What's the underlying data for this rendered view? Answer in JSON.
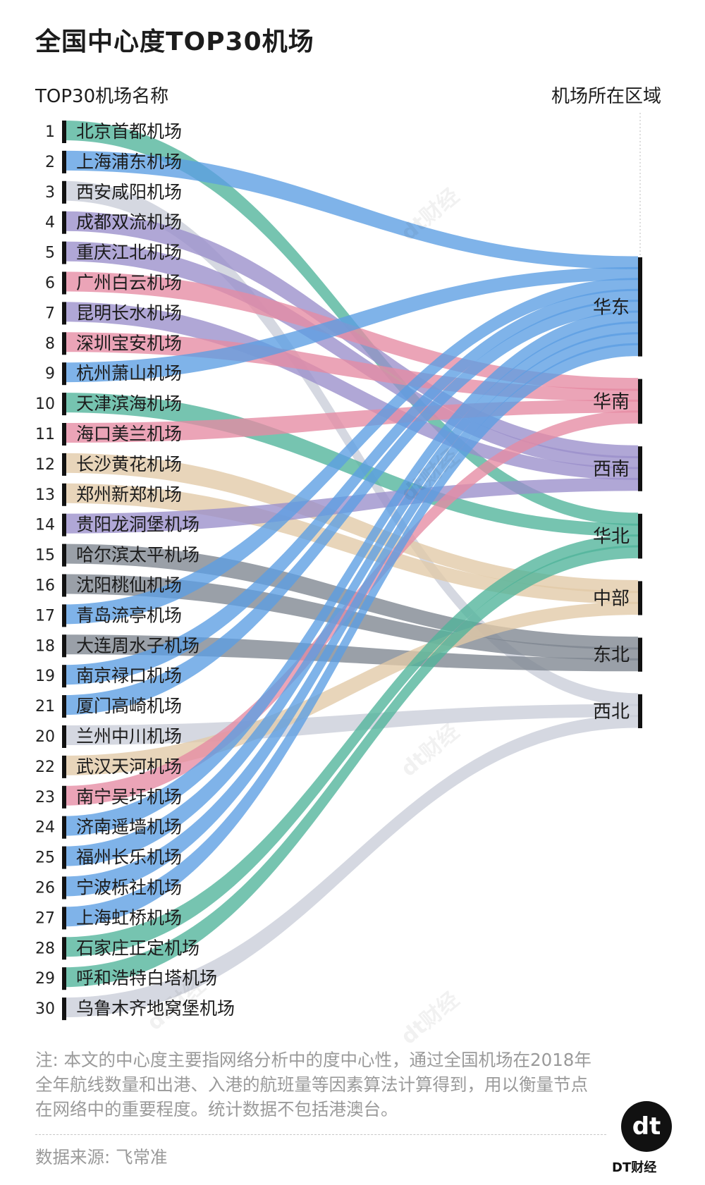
{
  "title": "全国中心度TOP30机场",
  "left_header": "TOP30机场名称",
  "right_header": "机场所在区域",
  "colors": {
    "华东": "#5b9ee3",
    "华南": "#e58aa3",
    "西南": "#9a8ecb",
    "华北": "#4fb39a",
    "中部": "#e1c9a7",
    "东北": "#7d8590",
    "西北": "#c9cdd8"
  },
  "chart_data": {
    "type": "sankey",
    "title": "全国中心度TOP30机场",
    "xlabel": "TOP30机场名称",
    "ylabel": "机场所在区域",
    "nodes_right": [
      "华东",
      "华南",
      "西南",
      "华北",
      "中部",
      "东北",
      "西北"
    ],
    "links": [
      {
        "rank": "1",
        "name": "北京首都机场",
        "region": "华北"
      },
      {
        "rank": "2",
        "name": "上海浦东机场",
        "region": "华东"
      },
      {
        "rank": "3",
        "name": "西安咸阳机场",
        "region": "西北"
      },
      {
        "rank": "4",
        "name": "成都双流机场",
        "region": "西南"
      },
      {
        "rank": "5",
        "name": "重庆江北机场",
        "region": "西南"
      },
      {
        "rank": "6",
        "name": "广州白云机场",
        "region": "华南"
      },
      {
        "rank": "7",
        "name": "昆明长水机场",
        "region": "西南"
      },
      {
        "rank": "8",
        "name": "深圳宝安机场",
        "region": "华南"
      },
      {
        "rank": "9",
        "name": "杭州萧山机场",
        "region": "华东"
      },
      {
        "rank": "10",
        "name": "天津滨海机场",
        "region": "华北"
      },
      {
        "rank": "11",
        "name": "海口美兰机场",
        "region": "华南"
      },
      {
        "rank": "12",
        "name": "长沙黄花机场",
        "region": "中部"
      },
      {
        "rank": "13",
        "name": "郑州新郑机场",
        "region": "中部"
      },
      {
        "rank": "14",
        "name": "贵阳龙洞堡机场",
        "region": "西南"
      },
      {
        "rank": "15",
        "name": "哈尔滨太平机场",
        "region": "东北"
      },
      {
        "rank": "16",
        "name": "沈阳桃仙机场",
        "region": "东北"
      },
      {
        "rank": "17",
        "name": "青岛流亭机场",
        "region": "华东"
      },
      {
        "rank": "18",
        "name": "大连周水子机场",
        "region": "东北"
      },
      {
        "rank": "19",
        "name": "南京禄口机场",
        "region": "华东"
      },
      {
        "rank": "21",
        "name": "厦门高崎机场",
        "region": "华东"
      },
      {
        "rank": "20",
        "name": "兰州中川机场",
        "region": "西北"
      },
      {
        "rank": "22",
        "name": "武汉天河机场",
        "region": "中部"
      },
      {
        "rank": "23",
        "name": "南宁吴圩机场",
        "region": "华南"
      },
      {
        "rank": "24",
        "name": "济南遥墙机场",
        "region": "华东"
      },
      {
        "rank": "25",
        "name": "福州长乐机场",
        "region": "华东"
      },
      {
        "rank": "26",
        "name": "宁波栎社机场",
        "region": "华东"
      },
      {
        "rank": "27",
        "name": "上海虹桥机场",
        "region": "华东"
      },
      {
        "rank": "28",
        "name": "石家庄正定机场",
        "region": "华北"
      },
      {
        "rank": "29",
        "name": "呼和浩特白塔机场",
        "region": "华北"
      },
      {
        "rank": "30",
        "name": "乌鲁木齐地窝堡机场",
        "region": "西北"
      }
    ]
  },
  "note": "注: 本文的中心度主要指网络分析中的度中心性，通过全国机场在2018年全年航线数量和出港、入港的航班量等因素算法计算得到，用以衡量节点在网络中的重要程度。统计数据不包括港澳台。",
  "source": "数据来源: 飞常准",
  "logo": {
    "mark": "dt",
    "text": "DT财经"
  },
  "watermark": "dt财经"
}
